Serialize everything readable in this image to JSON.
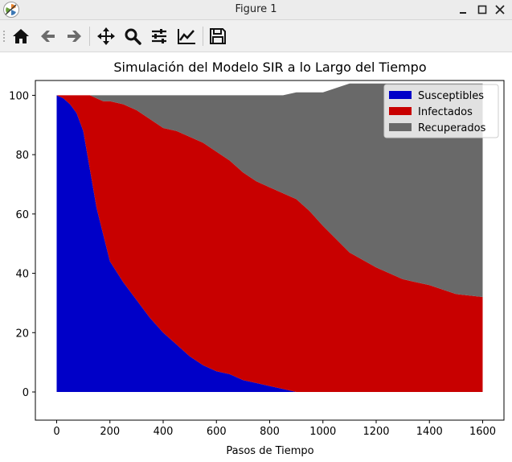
{
  "window": {
    "title": "Figure 1",
    "buttons": [
      "minimize-icon",
      "maximize-icon",
      "close-icon"
    ]
  },
  "toolbar": {
    "tools": [
      "home-icon",
      "back-arrow-icon",
      "forward-arrow-icon",
      "pan-icon",
      "zoom-icon",
      "configure-subplots-icon",
      "edit-axes-icon",
      "save-icon"
    ]
  },
  "chart_data": {
    "type": "area",
    "title": "Simulación del Modelo SIR a lo Largo del Tiempo",
    "xlabel": "Pasos de Tiempo",
    "ylabel": "",
    "xlim": [
      -80,
      1680
    ],
    "ylim": [
      -9.5,
      105
    ],
    "xticks": [
      "0",
      "200",
      "400",
      "600",
      "800",
      "1000",
      "1200",
      "1400",
      "1600"
    ],
    "yticks": [
      "0",
      "20",
      "40",
      "60",
      "80",
      "100"
    ],
    "grid": false,
    "legend_position": "top-right",
    "colors": {
      "Susceptibles": "#0000c8",
      "Infectados": "#c80000",
      "Recuperados": "#696969"
    },
    "legend": [
      "Susceptibles",
      "Infectados",
      "Recuperados"
    ],
    "x": [
      0,
      25,
      50,
      75,
      100,
      125,
      150,
      175,
      200,
      250,
      300,
      350,
      400,
      450,
      500,
      550,
      600,
      650,
      700,
      750,
      800,
      850,
      900,
      950,
      1000,
      1100,
      1200,
      1300,
      1400,
      1500,
      1600
    ],
    "series": [
      {
        "name": "Susceptibles",
        "values": [
          100,
          99,
          97,
          94,
          88,
          75,
          62,
          53,
          44,
          37,
          31,
          25,
          20,
          16,
          12,
          9,
          7,
          6,
          4,
          3,
          2,
          1,
          0,
          0,
          0,
          0,
          0,
          0,
          0,
          0,
          0
        ]
      },
      {
        "name": "Infectados",
        "values": [
          0,
          1,
          3,
          6,
          12,
          25,
          37,
          45,
          54,
          60,
          64,
          67,
          69,
          72,
          74,
          75,
          74,
          72,
          70,
          68,
          67,
          66,
          65,
          61,
          56,
          47,
          42,
          38,
          36,
          33,
          32
        ]
      },
      {
        "name": "Recuperados",
        "values": [
          0,
          0,
          0,
          0,
          0,
          0,
          1,
          2,
          2,
          3,
          5,
          8,
          11,
          12,
          14,
          16,
          19,
          22,
          26,
          29,
          31,
          33,
          36,
          40,
          45,
          57,
          62,
          66,
          68,
          71,
          72
        ]
      }
    ]
  }
}
